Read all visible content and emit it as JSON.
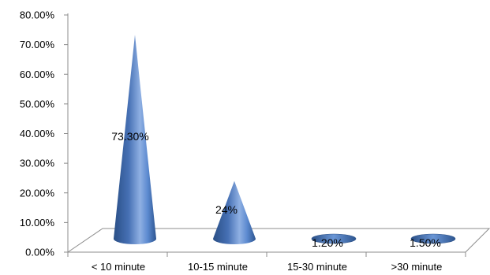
{
  "chart_data": {
    "type": "bar",
    "style": "3d-cone",
    "categories": [
      "< 10 minute",
      "10-15 minute",
      "15-30 minute",
      ">30 minute"
    ],
    "values": [
      73.3,
      24,
      1.2,
      1.5
    ],
    "data_labels": [
      "73.30%",
      "24%",
      "1.20%",
      "1.50%"
    ],
    "y_ticks": [
      "0.00%",
      "10.00%",
      "20.00%",
      "30.00%",
      "40.00%",
      "50.00%",
      "60.00%",
      "70.00%",
      "80.00%"
    ],
    "ylim": [
      0,
      80
    ],
    "grid": false,
    "legend": "none",
    "colors": {
      "cone_dark": "#2a4f86",
      "cone_mid": "#5c8ad0",
      "cone_light": "#b9cdee",
      "axis": "#8c8c8c"
    }
  }
}
